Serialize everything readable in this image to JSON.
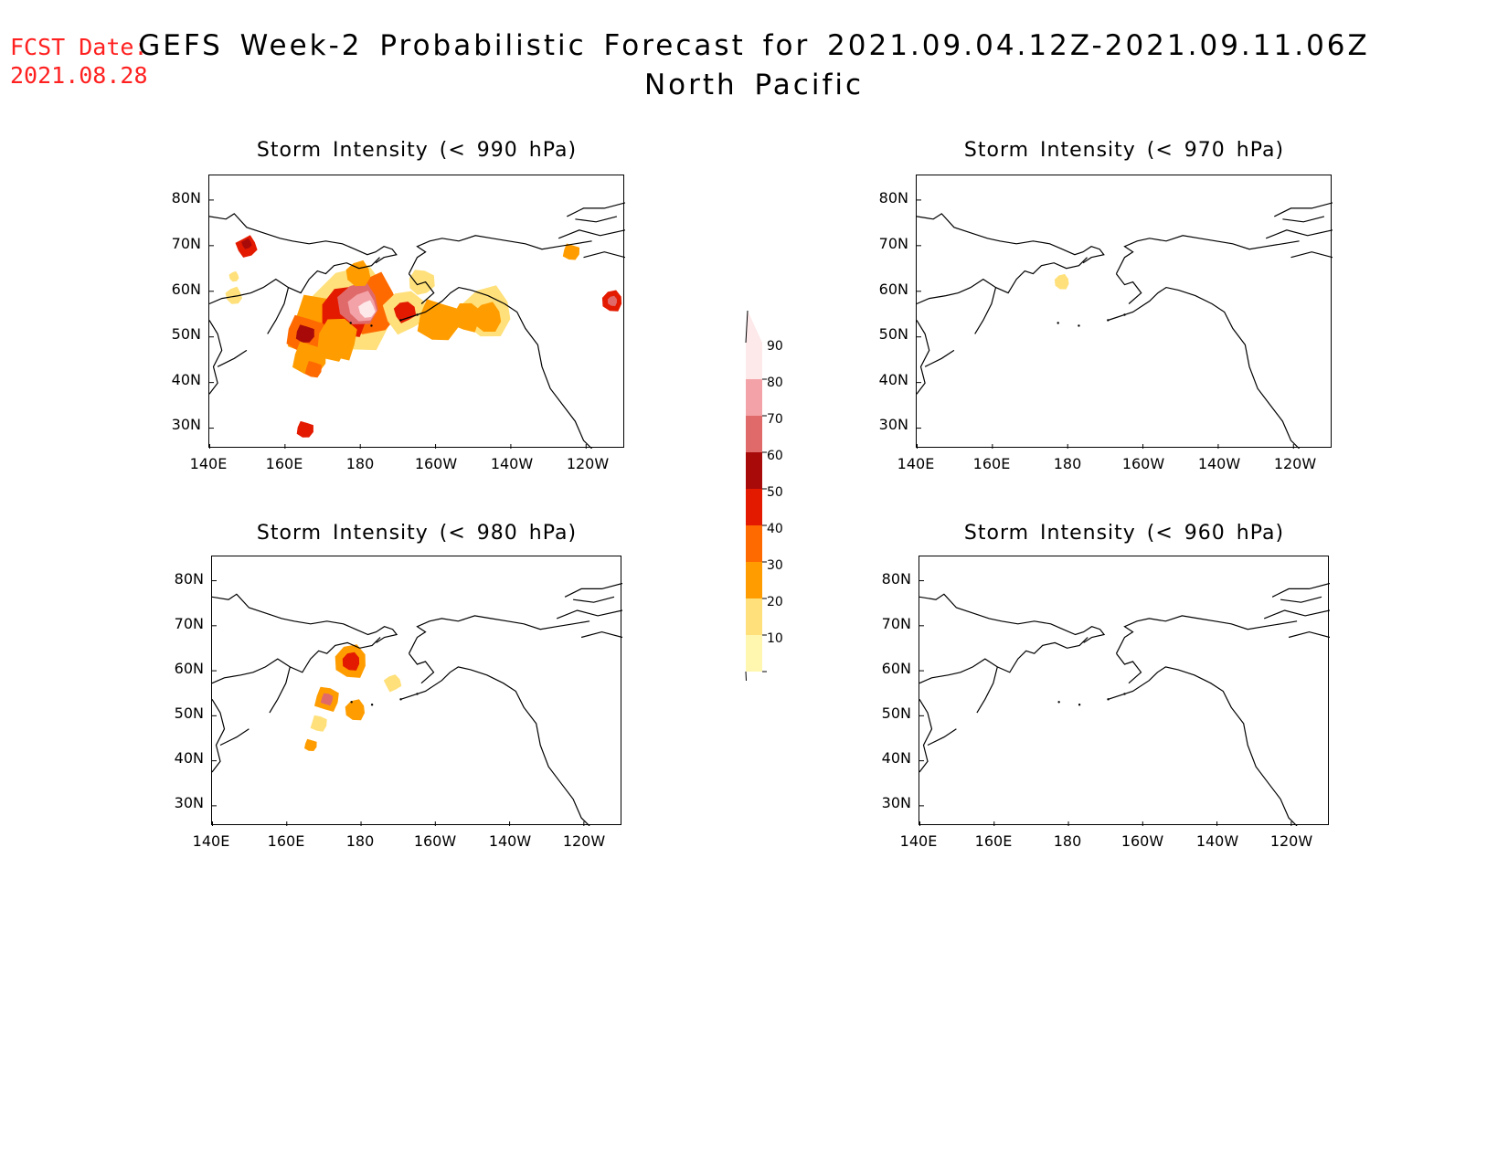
{
  "header": {
    "fcst_label": "FCST Date:",
    "fcst_date": "2021.08.28",
    "title": "GEFS Week-2 Probabilistic Forecast for 2021.09.04.12Z-2021.09.11.06Z",
    "subtitle": "North Pacific"
  },
  "axes": {
    "lat_labels": [
      "80N",
      "70N",
      "60N",
      "50N",
      "40N",
      "30N"
    ],
    "lon_labels": [
      "140E",
      "160E",
      "180",
      "160W",
      "140W",
      "120W"
    ]
  },
  "panels": [
    {
      "title": "Storm Intensity (< 990 hPa)"
    },
    {
      "title": "Storm Intensity (< 970 hPa)"
    },
    {
      "title": "Storm Intensity (< 980 hPa)"
    },
    {
      "title": "Storm Intensity (< 960 hPa)"
    }
  ],
  "colorbar": {
    "levels": [
      "90",
      "80",
      "70",
      "60",
      "50",
      "40",
      "30",
      "20",
      "10"
    ],
    "colors": [
      "#fde8ea",
      "#f3a3a8",
      "#e06a6a",
      "#a80a0a",
      "#e31a00",
      "#ff6a00",
      "#ff9d00",
      "#ffe07a",
      "#fff7b0"
    ]
  },
  "colors": {
    "header_red": "#ff2020"
  }
}
